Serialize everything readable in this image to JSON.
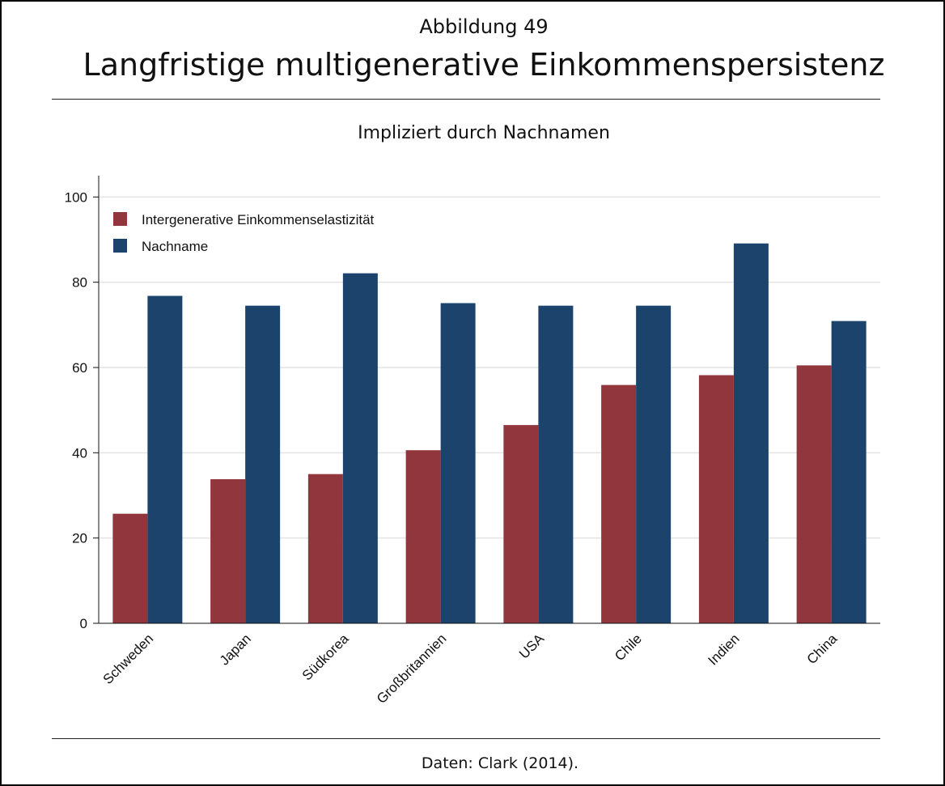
{
  "figure_label": "Abbildung 49",
  "title": "Langfristige multigenerative Einkommenspersistenz",
  "source_note": "Daten: Clark (2014).",
  "colors": {
    "series1": "#92363e",
    "series2": "#1c436b",
    "grid": "#e3e3e3",
    "axis": "#111111"
  },
  "chart_data": {
    "type": "bar",
    "title": "Impliziert durch Nachnamen",
    "xlabel": "",
    "ylabel": "",
    "ylim": [
      0,
      105
    ],
    "yticks": [
      0,
      20,
      40,
      60,
      80,
      100
    ],
    "grid": true,
    "legend_position": "top-left",
    "categories": [
      "Schweden",
      "Japan",
      "Südkorea",
      "Großbritannien",
      "USA",
      "Chile",
      "Indien",
      "China"
    ],
    "series": [
      {
        "name": "Intergenerative Einkommenselastizität",
        "values": [
          25.7,
          33.8,
          35.0,
          40.6,
          46.5,
          55.9,
          58.2,
          60.5
        ]
      },
      {
        "name": "Nachname",
        "values": [
          76.8,
          74.5,
          82.1,
          75.1,
          74.5,
          74.5,
          89.1,
          70.9
        ]
      }
    ]
  }
}
